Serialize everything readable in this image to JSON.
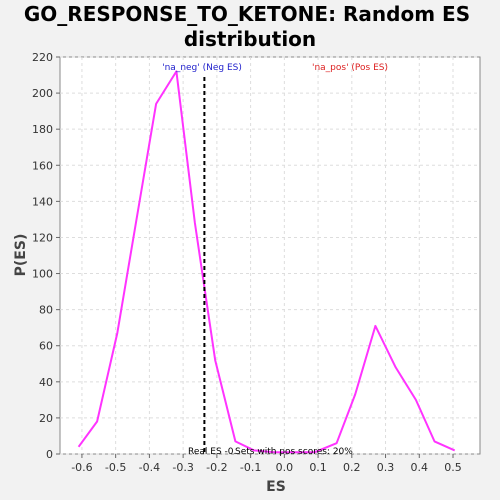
{
  "chart_data": {
    "type": "line",
    "title_line1": "GO_RESPONSE_TO_KETONE: Random ES",
    "title_line2": "distribution",
    "xlabel": "ES",
    "ylabel": "P(ES)",
    "xlim": [
      -0.665,
      0.58
    ],
    "ylim": [
      0,
      220
    ],
    "xticks": [
      "-0.6",
      "-0.5",
      "-0.4",
      "-0.3",
      "-0.2",
      "-0.1",
      "0.0",
      "0.1",
      "0.2",
      "0.3",
      "0.4",
      "0.5"
    ],
    "yticks": [
      "0",
      "20",
      "40",
      "60",
      "80",
      "100",
      "120",
      "140",
      "160",
      "180",
      "200",
      "220"
    ],
    "grid": true,
    "series": [
      {
        "color": "#ff33ff",
        "x": [
          -0.61,
          -0.555,
          -0.495,
          -0.44,
          -0.38,
          -0.32,
          -0.265,
          -0.205,
          -0.145,
          -0.09,
          -0.03,
          0.03,
          0.09,
          0.155,
          0.21,
          0.27,
          0.33,
          0.39,
          0.445,
          0.505
        ],
        "y": [
          4,
          18,
          67,
          128,
          194,
          212,
          128,
          52,
          7,
          2,
          1,
          1,
          1,
          6,
          33,
          71,
          48,
          30,
          7,
          2
        ]
      }
    ],
    "real_es_x": -0.237,
    "real_es_color": "#000000",
    "annotations": {
      "neg_label": "'na_neg' (Neg ES)",
      "neg_color": "#2222cc",
      "pos_label": "'na_pos' (Pos ES)",
      "pos_color": "#dd2222",
      "real_es_label": "Real ES -0.",
      "pos_scores_label": "Sets with pos scores: 20%"
    }
  }
}
